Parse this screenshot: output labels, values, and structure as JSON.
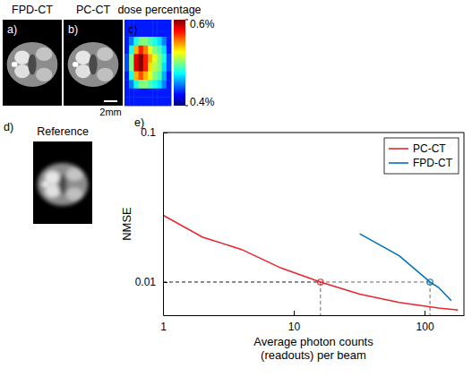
{
  "panels": [
    {
      "label": "a)",
      "title": "FPD-CT"
    },
    {
      "label": "b)",
      "title": "PC-CT",
      "scale_bar": "2mm"
    },
    {
      "label": "c)",
      "title": "dose percentage",
      "cells": [
        [
          0.43,
          0.43,
          0.43,
          0.43,
          0.43,
          0.43,
          0.43,
          0.43,
          0.43,
          0.43
        ],
        [
          0.43,
          0.43,
          0.43,
          0.43,
          0.43,
          0.43,
          0.43,
          0.43,
          0.43,
          0.43
        ],
        [
          0.43,
          0.45,
          0.48,
          0.5,
          0.5,
          0.49,
          0.48,
          0.47,
          0.45,
          0.43
        ],
        [
          0.43,
          0.48,
          0.54,
          0.57,
          0.55,
          0.52,
          0.5,
          0.49,
          0.47,
          0.43
        ],
        [
          0.44,
          0.5,
          0.58,
          0.6,
          0.57,
          0.54,
          0.52,
          0.5,
          0.48,
          0.44
        ],
        [
          0.44,
          0.5,
          0.58,
          0.6,
          0.57,
          0.53,
          0.51,
          0.5,
          0.47,
          0.44
        ],
        [
          0.43,
          0.48,
          0.54,
          0.56,
          0.54,
          0.52,
          0.5,
          0.49,
          0.46,
          0.43
        ],
        [
          0.43,
          0.45,
          0.48,
          0.5,
          0.5,
          0.49,
          0.48,
          0.47,
          0.45,
          0.43
        ],
        [
          0.43,
          0.43,
          0.43,
          0.43,
          0.43,
          0.43,
          0.43,
          0.43,
          0.43,
          0.43
        ],
        [
          0.43,
          0.43,
          0.43,
          0.43,
          0.43,
          0.43,
          0.43,
          0.43,
          0.43,
          0.43
        ]
      ],
      "colorbar": {
        "range": [
          0.4,
          0.6
        ],
        "ticks": [
          {
            "value": 0.6,
            "label": "0.6%"
          },
          {
            "value": 0.4,
            "label": "0.4%"
          }
        ]
      }
    },
    {
      "label": "d)",
      "title": "Reference"
    }
  ],
  "chart_data": {
    "type": "line",
    "panel": "e)",
    "x_label": "Average photon counts (readouts) per beam",
    "y_label": "NMSE",
    "log": true,
    "xlim": [
      1,
      200
    ],
    "ylim": [
      0.006,
      0.1
    ],
    "xticks": [
      1,
      10,
      100
    ],
    "yticks": [
      0.01,
      0.1
    ],
    "legend": "top-right",
    "series": [
      {
        "name": "PC-CT",
        "color": "#e8262b",
        "x": [
          1,
          2,
          4,
          8,
          16,
          32,
          64,
          128,
          180
        ],
        "values": [
          0.028,
          0.02,
          0.0165,
          0.0124,
          0.01,
          0.0083,
          0.0073,
          0.0067,
          0.0065
        ],
        "crossing": {
          "x": 16,
          "y": 0.01
        }
      },
      {
        "name": "FPD-CT",
        "color": "#0072bd",
        "x": [
          32,
          64,
          110,
          128,
          160
        ],
        "values": [
          0.021,
          0.015,
          0.01,
          0.0092,
          0.0075
        ],
        "crossing": {
          "x": 110,
          "y": 0.01
        }
      }
    ]
  }
}
